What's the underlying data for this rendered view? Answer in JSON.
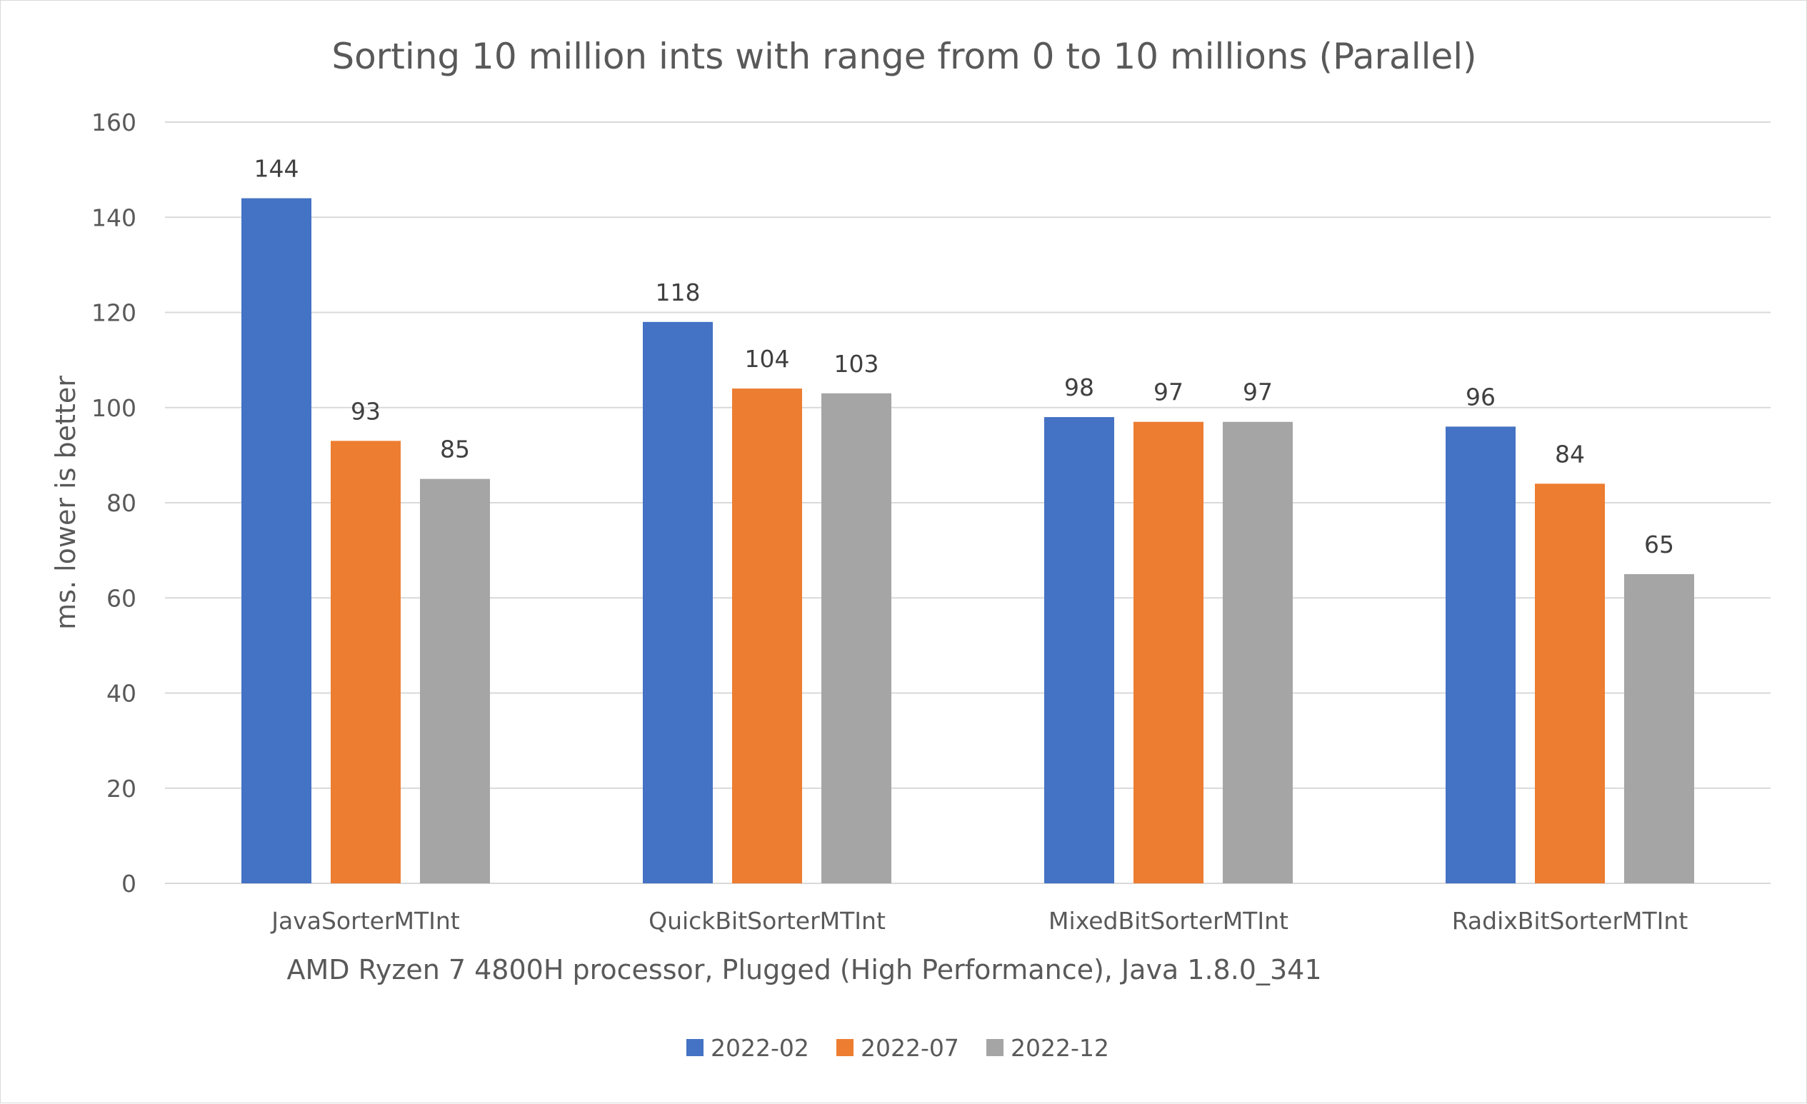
{
  "chart_data": {
    "type": "bar",
    "title": "Sorting 10 million ints with range from 0 to 10 millions (Parallel)",
    "xlabel": "AMD Ryzen 7 4800H processor, Plugged (High Performance), Java 1.8.0_341",
    "ylabel": "ms. lower is better",
    "ylim": [
      0,
      160
    ],
    "yticks": [
      0,
      20,
      40,
      60,
      80,
      100,
      120,
      140,
      160
    ],
    "grid": true,
    "legend_position": "bottom",
    "categories": [
      "JavaSorterMTInt",
      "QuickBitSorterMTInt",
      "MixedBitSorterMTInt",
      "RadixBitSorterMTInt"
    ],
    "series": [
      {
        "name": "2022-02",
        "color": "#4472C4",
        "values": [
          144,
          118,
          98,
          96
        ]
      },
      {
        "name": "2022-07",
        "color": "#ED7D31",
        "values": [
          93,
          104,
          97,
          84
        ]
      },
      {
        "name": "2022-12",
        "color": "#A5A5A5",
        "values": [
          85,
          103,
          97,
          65
        ]
      }
    ]
  }
}
